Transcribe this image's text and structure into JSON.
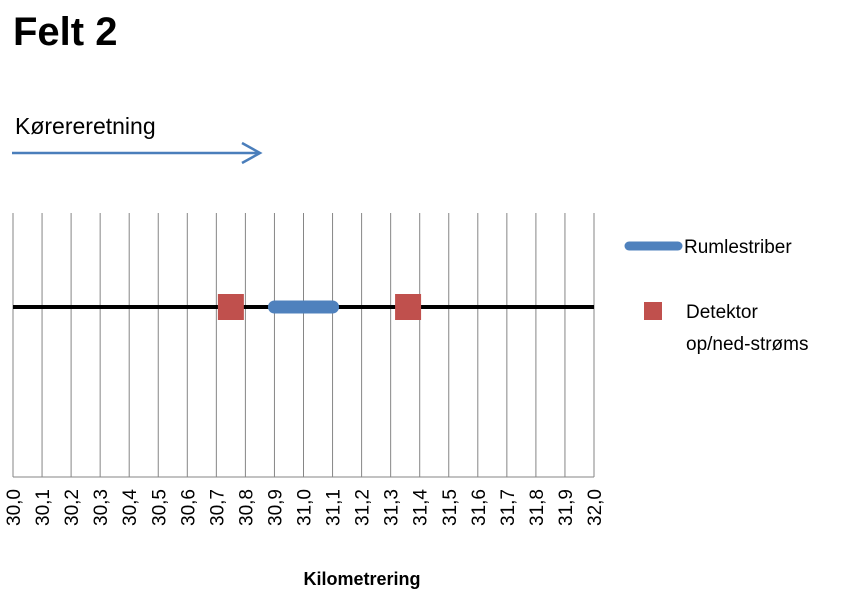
{
  "page": {
    "title": "Felt 2",
    "direction_label": "Kørereretning"
  },
  "colors": {
    "arrow": "#4a7ebb",
    "rumble": "#4f81bd",
    "detector": "#c0504d",
    "axis_line": "#000000",
    "grid": "#868686"
  },
  "chart_data": {
    "type": "scatter",
    "title": "",
    "xlabel": "Kilometrering",
    "ylabel": "",
    "xlim": [
      30.0,
      32.0
    ],
    "ylim": [
      0,
      2
    ],
    "grid": true,
    "legend_position": "right",
    "x_ticks": [
      "30,0",
      "30,1",
      "30,2",
      "30,3",
      "30,4",
      "30,5",
      "30,6",
      "30,7",
      "30,8",
      "30,9",
      "31,0",
      "31,1",
      "31,2",
      "31,3",
      "31,4",
      "31,5",
      "31,6",
      "31,7",
      "31,8",
      "31,9",
      "32,0"
    ],
    "road_line": {
      "x": [
        30.0,
        32.0
      ],
      "y": 1
    },
    "series": [
      {
        "name": "Rumlestriber",
        "kind": "segment",
        "x": [
          30.9,
          31.1
        ],
        "y": 1
      },
      {
        "name": "Detektor op/ned-strøms",
        "kind": "points",
        "x": [
          30.75,
          31.36
        ],
        "y": [
          1,
          1
        ]
      }
    ]
  }
}
